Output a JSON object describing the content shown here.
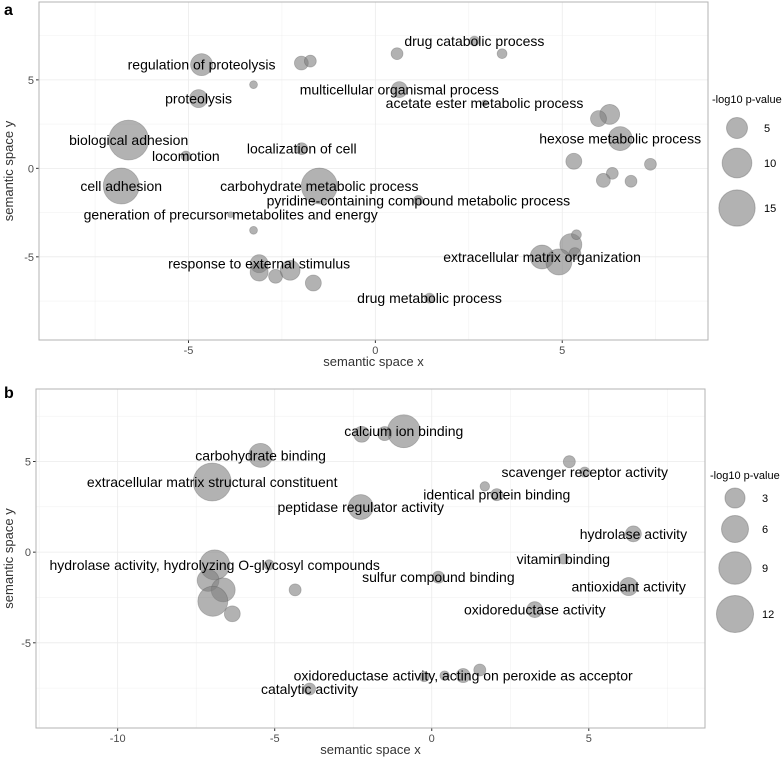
{
  "colors": {
    "bubble_fill": "#7f7f7f",
    "bubble_stroke": "#555555",
    "frame": "#b3b3b3",
    "grid": "#ebebeb"
  },
  "chart_data": [
    {
      "panel_letter": "a",
      "type": "scatter",
      "xlabel": "semantic space x",
      "ylabel": "semantic space y",
      "xlim": [
        -9.0,
        8.9
      ],
      "ylim": [
        -9.7,
        9.4
      ],
      "xticks": [
        -5,
        0,
        5
      ],
      "yticks": [
        -5,
        0,
        5
      ],
      "grid": true,
      "legend": {
        "title": "-log10 p-value",
        "placement": "right",
        "values": [
          5,
          10,
          15
        ],
        "labels": [
          "5",
          "10",
          "15"
        ]
      },
      "size_scale": 22,
      "size_offset": 0,
      "points": [
        {
          "x": -6.6,
          "y": 1.6,
          "value": 18,
          "label": "biological adhesion"
        },
        {
          "x": -6.8,
          "y": -1.0,
          "value": 14.7,
          "label": "cell adhesion"
        },
        {
          "x": -1.5,
          "y": -1.0,
          "value": 14.7,
          "label": "carbohydrate metabolic process"
        },
        {
          "x": -4.65,
          "y": 5.86,
          "value": 5.5,
          "label": "regulation of proteolysis"
        },
        {
          "x": -4.73,
          "y": 3.94,
          "value": 3.7,
          "label": "proteolysis"
        },
        {
          "x": -3.26,
          "y": 4.73,
          "value": 0.7,
          "label": ""
        },
        {
          "x": -1.98,
          "y": 5.95,
          "value": 2.2,
          "label": ""
        },
        {
          "x": -1.74,
          "y": 6.06,
          "value": 1.6,
          "label": ""
        },
        {
          "x": 0.58,
          "y": 6.48,
          "value": 1.6,
          "label": ""
        },
        {
          "x": 2.65,
          "y": 7.19,
          "value": 1.1,
          "label": "drug catabolic process"
        },
        {
          "x": 3.39,
          "y": 6.48,
          "value": 1.1,
          "label": ""
        },
        {
          "x": 0.64,
          "y": 4.45,
          "value": 2.9,
          "label": "multicellular organismal process"
        },
        {
          "x": 2.92,
          "y": 3.69,
          "value": 0.4,
          "label": "acetate ester metabolic process"
        },
        {
          "x": 6.27,
          "y": 3.05,
          "value": 4.5,
          "label": ""
        },
        {
          "x": 5.97,
          "y": 2.81,
          "value": 2.9,
          "label": ""
        },
        {
          "x": 6.55,
          "y": 1.68,
          "value": 6.5,
          "label": "hexose metabolic process"
        },
        {
          "x": 5.31,
          "y": 0.4,
          "value": 2.9,
          "label": ""
        },
        {
          "x": 7.36,
          "y": 0.23,
          "value": 1.6,
          "label": ""
        },
        {
          "x": 6.34,
          "y": -0.28,
          "value": 1.6,
          "label": ""
        },
        {
          "x": 6.1,
          "y": -0.68,
          "value": 2.2,
          "label": ""
        },
        {
          "x": 6.84,
          "y": -0.73,
          "value": 1.6,
          "label": ""
        },
        {
          "x": -1.97,
          "y": 1.11,
          "value": 1.6,
          "label": "localization of cell"
        },
        {
          "x": -5.07,
          "y": 0.7,
          "value": 1.1,
          "label": "locomotion"
        },
        {
          "x": 1.15,
          "y": -1.81,
          "value": 1.1,
          "label": "pyridine-containing compound metabolic process"
        },
        {
          "x": -3.87,
          "y": -2.62,
          "value": 0.4,
          "label": "generation of precursor metabolites and energy"
        },
        {
          "x": -3.26,
          "y": -3.5,
          "value": 0.7,
          "label": ""
        },
        {
          "x": 5.23,
          "y": -4.31,
          "value": 5.5,
          "label": ""
        },
        {
          "x": 5.38,
          "y": -3.75,
          "value": 1.1,
          "label": ""
        },
        {
          "x": 4.46,
          "y": -5.01,
          "value": 6.5,
          "label": "extracellular matrix organization"
        },
        {
          "x": 4.91,
          "y": -5.29,
          "value": 7.7,
          "label": ""
        },
        {
          "x": 5.34,
          "y": -4.82,
          "value": 1.6,
          "label": ""
        },
        {
          "x": -3.11,
          "y": -5.39,
          "value": 3.7,
          "label": "response to external stimulus"
        },
        {
          "x": -3.11,
          "y": -5.86,
          "value": 3.7,
          "label": ""
        },
        {
          "x": -2.67,
          "y": -6.1,
          "value": 2.2,
          "label": ""
        },
        {
          "x": -2.28,
          "y": -5.76,
          "value": 4.5,
          "label": ""
        },
        {
          "x": -1.66,
          "y": -6.48,
          "value": 2.9,
          "label": ""
        },
        {
          "x": 1.45,
          "y": -7.33,
          "value": 1.1,
          "label": "drug metabolic process"
        }
      ]
    },
    {
      "panel_letter": "b",
      "type": "scatter",
      "xlabel": "semantic space x",
      "ylabel": "semantic space y",
      "xlim": [
        -12.6,
        8.7
      ],
      "ylim": [
        -9.7,
        9.0
      ],
      "xticks": [
        -10,
        -5,
        0,
        5
      ],
      "yticks": [
        -5,
        0,
        5
      ],
      "grid": true,
      "legend": {
        "title": "-log10 p-value",
        "placement": "right",
        "values": [
          3,
          6,
          9,
          12
        ],
        "labels": [
          "3",
          "6",
          "9",
          "12"
        ]
      },
      "size_scale": 27,
      "size_offset": 20,
      "points": [
        {
          "x": -0.89,
          "y": 6.67,
          "value": 9.3,
          "label": "calcium ion binding"
        },
        {
          "x": -2.23,
          "y": 6.5,
          "value": 1.6,
          "label": ""
        },
        {
          "x": -1.5,
          "y": 6.54,
          "value": 1.1,
          "label": ""
        },
        {
          "x": -5.45,
          "y": 5.34,
          "value": 4.6,
          "label": "carbohydrate binding"
        },
        {
          "x": -6.99,
          "y": 3.87,
          "value": 12.6,
          "label": "extracellular matrix structural constituent"
        },
        {
          "x": -2.26,
          "y": 2.49,
          "value": 5.0,
          "label": "peptidase regulator activity"
        },
        {
          "x": 4.38,
          "y": 4.99,
          "value": 0.6,
          "label": ""
        },
        {
          "x": 4.87,
          "y": 4.42,
          "value": 0.2,
          "label": "scavenger receptor activity"
        },
        {
          "x": 1.69,
          "y": 3.63,
          "value": 0.1,
          "label": ""
        },
        {
          "x": 2.07,
          "y": 3.17,
          "value": 0.6,
          "label": "identical protein binding"
        },
        {
          "x": 6.42,
          "y": 1.01,
          "value": 1.6,
          "label": "hydrolase activity"
        },
        {
          "x": 4.19,
          "y": -0.37,
          "value": 0.2,
          "label": "vitamin binding"
        },
        {
          "x": -6.91,
          "y": -0.7,
          "value": 7.6,
          "label": "hydrolase activity, hydrolyzing O-glycosyl compounds"
        },
        {
          "x": -5.18,
          "y": -0.7,
          "value": 0.2,
          "label": ""
        },
        {
          "x": -7.12,
          "y": -1.56,
          "value": 3.7,
          "label": ""
        },
        {
          "x": -6.64,
          "y": -2.08,
          "value": 4.6,
          "label": ""
        },
        {
          "x": -6.97,
          "y": -2.71,
          "value": 7.6,
          "label": ""
        },
        {
          "x": -6.35,
          "y": -3.4,
          "value": 1.6,
          "label": ""
        },
        {
          "x": -4.35,
          "y": -2.08,
          "value": 0.6,
          "label": ""
        },
        {
          "x": 0.21,
          "y": -1.38,
          "value": 0.6,
          "label": "sulfur compound binding"
        },
        {
          "x": 6.27,
          "y": -1.9,
          "value": 2.3,
          "label": "antioxidant activity"
        },
        {
          "x": 3.28,
          "y": -3.17,
          "value": 1.6,
          "label": "oxidoreductase activity"
        },
        {
          "x": -0.24,
          "y": -6.87,
          "value": 0.2,
          "label": ""
        },
        {
          "x": 0.41,
          "y": -6.81,
          "value": 0.1,
          "label": ""
        },
        {
          "x": 1.0,
          "y": -6.81,
          "value": 1.1,
          "label": "oxidoreductase activity, acting on peroxide as acceptor"
        },
        {
          "x": 1.53,
          "y": -6.5,
          "value": 0.6,
          "label": ""
        },
        {
          "x": -3.89,
          "y": -7.55,
          "value": 0.6,
          "label": "catalytic activity"
        }
      ]
    }
  ]
}
